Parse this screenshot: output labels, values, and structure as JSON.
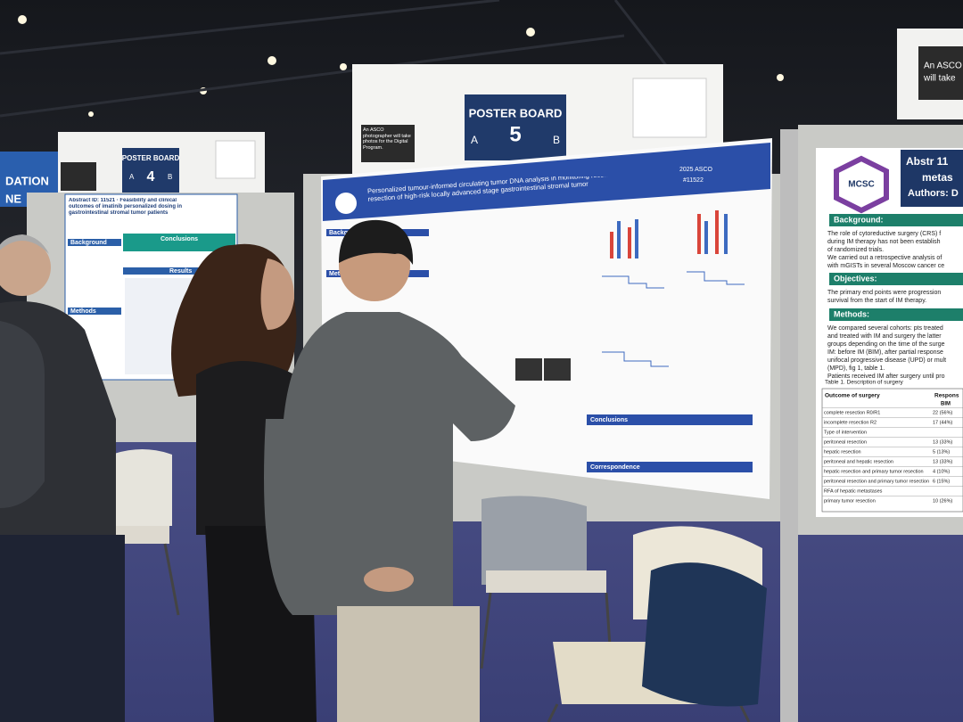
{
  "foundation_banner": {
    "line1": "DATION",
    "line2": "NE"
  },
  "boards": [
    {
      "header": "POSTER BOARD",
      "left": "A",
      "number": "4",
      "right": "B"
    },
    {
      "header": "POSTER BOARD",
      "left": "A",
      "number": "5",
      "right": "B"
    }
  ],
  "photographer_note": "An ASCO photographer will take photos for the Digital Program.",
  "top_right_sign": {
    "line1": "An ASCO",
    "line2": "will take"
  },
  "left_poster": {
    "title": "Abstract ID: 11521 · Feasibility and clinical outcomes of imatinib personalized dosing in gastrointestinal stromal tumor patients",
    "sections": [
      "Background",
      "Conclusions",
      "Results",
      "Methods"
    ]
  },
  "center_poster": {
    "title": "Personalized tumour-informed circulating tumor DNA analysis in monitoring recurrence following resection of high-risk locally advanced stage gastrointestinal stromal tumor",
    "meeting": "2025 ASCO",
    "abstract": "#11522",
    "sections": [
      "Background",
      "Methods",
      "Conclusions",
      "Correspondence"
    ]
  },
  "right_poster": {
    "logo": "MCSC",
    "abstract": "Abstr 11",
    "title_fragment": "metas",
    "authors": "Authors: D",
    "background_heading": "Background:",
    "background_text": [
      "The role of cytoreductive surgery (CRS) f",
      "during IM therapy has not been establish",
      "of randomized trials.",
      "We carried out a retrospective analysis of",
      "with mGISTs in several Moscow cancer ce"
    ],
    "objectives_heading": "Objectives:",
    "objectives_text": [
      "The primary end points were progression",
      "survival from the start of IM therapy."
    ],
    "methods_heading": "Methods:",
    "methods_text": [
      "We compared several cohorts: pts treated",
      "and treated with IM and surgery the latter",
      "groups depending on the time of the surge",
      "IM: before IM (BIM), after partial response",
      "unifocal progressive disease (UPD) or mult",
      "(MPD), fig 1, table 1.",
      "Patients received IM after surgery until pro"
    ],
    "table_caption": "Table 1. Description of surgery",
    "table_header": [
      "Outcome of surgery",
      "Respons"
    ],
    "table_subheader": "BIM",
    "table_rows": [
      [
        "complete resection R0/R1",
        "22 (56%)"
      ],
      [
        "incomplete resection R2",
        "17 (44%)"
      ],
      [
        "Type of intervention",
        ""
      ],
      [
        "peritoneal resection",
        "13 (33%)"
      ],
      [
        "hepatic resection",
        "5 (13%)"
      ],
      [
        "peritoneal and hepatic resection",
        "13 (33%)"
      ],
      [
        "hepatic resection and primary tumor resection",
        "4 (10%)"
      ],
      [
        "peritoneal resection and primary tumor resection",
        "6 (15%)"
      ],
      [
        "RFA of hepatic metastases",
        ""
      ],
      [
        "primary tumor resection",
        "10 (26%)"
      ]
    ]
  }
}
